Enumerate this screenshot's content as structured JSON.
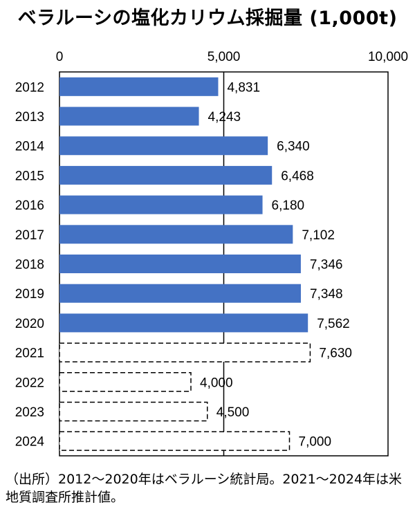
{
  "chart_data": {
    "type": "bar",
    "orientation": "horizontal",
    "title": "ベラルーシの塩化カリウム採掘量 (1,000t)",
    "categories": [
      "2012",
      "2013",
      "2014",
      "2015",
      "2016",
      "2017",
      "2018",
      "2019",
      "2020",
      "2021",
      "2022",
      "2023",
      "2024"
    ],
    "values": [
      4831,
      4243,
      6340,
      6468,
      6180,
      7102,
      7346,
      7348,
      7562,
      7630,
      4000,
      4500,
      7000
    ],
    "value_labels": [
      "4,831",
      "4,243",
      "6,340",
      "6,468",
      "6,180",
      "7,102",
      "7,346",
      "7,348",
      "7,562",
      "7,630",
      "4,000",
      "4,500",
      "7,000"
    ],
    "bar_styles": [
      "solid",
      "solid",
      "solid",
      "solid",
      "solid",
      "solid",
      "solid",
      "solid",
      "solid",
      "dashed",
      "dashed",
      "dashed",
      "dashed"
    ],
    "xlim": [
      0,
      10000
    ],
    "x_ticks": [
      0,
      5000,
      10000
    ],
    "x_tick_labels": [
      "0",
      "5,000",
      "10,000"
    ],
    "x_axis_position": "top",
    "gridlines": [
      5000
    ],
    "colors": {
      "solid_fill": "#4472C4",
      "dashed_stroke": "#000000"
    }
  },
  "source": "（出所）2012～2020年はベラルーシ統計局。2021～2024年は米地質調査所推計値。"
}
